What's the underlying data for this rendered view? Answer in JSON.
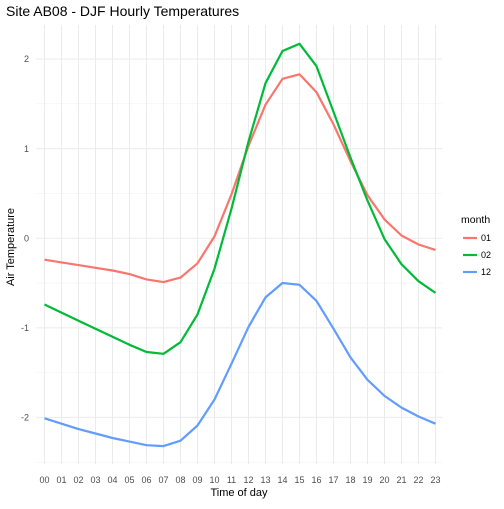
{
  "chart_data": {
    "type": "line",
    "title": "Site AB08 - DJF Hourly Temperatures",
    "xlabel": "Time of day",
    "ylabel": "Air Temperature",
    "categories": [
      "00",
      "01",
      "02",
      "03",
      "04",
      "05",
      "06",
      "07",
      "08",
      "09",
      "10",
      "11",
      "12",
      "13",
      "14",
      "15",
      "16",
      "17",
      "18",
      "19",
      "20",
      "21",
      "22",
      "23"
    ],
    "y_ticks": [
      -2,
      -1,
      0,
      1,
      2
    ],
    "ylim": [
      -2.52,
      2.38
    ],
    "grid": true,
    "legend": {
      "title": "month",
      "position": "right",
      "entries": [
        "01",
        "02",
        "12"
      ]
    },
    "series": [
      {
        "name": "01",
        "color": "#F8766D",
        "values": [
          -0.24,
          -0.27,
          -0.3,
          -0.33,
          -0.36,
          -0.4,
          -0.46,
          -0.49,
          -0.44,
          -0.28,
          0.02,
          0.49,
          1.03,
          1.49,
          1.78,
          1.83,
          1.63,
          1.27,
          0.86,
          0.48,
          0.21,
          0.03,
          -0.07,
          -0.13
        ]
      },
      {
        "name": "02",
        "color": "#00BA38",
        "values": [
          -0.74,
          -0.83,
          -0.92,
          -1.01,
          -1.1,
          -1.19,
          -1.27,
          -1.29,
          -1.16,
          -0.85,
          -0.34,
          0.33,
          1.08,
          1.73,
          2.09,
          2.17,
          1.92,
          1.41,
          0.9,
          0.42,
          -0.01,
          -0.29,
          -0.48,
          -0.61
        ]
      },
      {
        "name": "12",
        "color": "#619CFF",
        "values": [
          -2.01,
          -2.07,
          -2.13,
          -2.18,
          -2.23,
          -2.27,
          -2.31,
          -2.32,
          -2.26,
          -2.09,
          -1.8,
          -1.4,
          -0.99,
          -0.66,
          -0.5,
          -0.52,
          -0.7,
          -1.01,
          -1.33,
          -1.58,
          -1.76,
          -1.89,
          -1.99,
          -2.07
        ]
      }
    ]
  }
}
